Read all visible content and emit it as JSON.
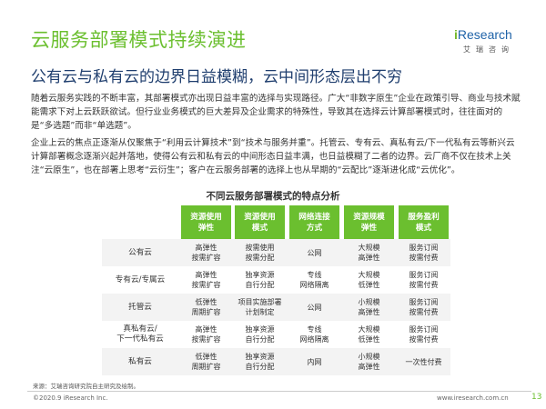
{
  "header": {
    "title": "云服务部署模式持续演进",
    "logo_text": "Research",
    "logo_i": "i",
    "logo_sub": "艾瑞咨询"
  },
  "subtitle": "公有云与私有云的边界日益模糊，云中间形态层出不穷",
  "paragraphs": [
    "随着云服务实践的不断丰富，其部署模式亦出现日益丰富的选择与实现路径。广大“非数字原生”企业在政策引导、商业与技术赋能需求下对上云跃跃欲试。但行业业务模式的巨大差异及企业需求的特殊性，导致其在选择云计算部署模式时，往往面对的是“多选题”而非“单选题”。",
    "企业上云的焦点正逐渐从仅聚焦于“利用云计算技术”到“技术与服务并重”。托管云、专有云、真私有云/下一代私有云等新兴云计算部署概念逐渐兴起并落地，使得公有云和私有云的中间形态日益丰满，也日益模糊了二者的边界。云厂商不仅在技术上关注“云原生”，也在部署上思考“云衍生”；客户在云服务部署的选择上也从早期的“云配比”逐渐进化成“云优化”。"
  ],
  "table": {
    "title": "不同云服务部署模式的特点分析",
    "headers": [
      "资源使用\n弹性",
      "资源使用\n模式",
      "网络连接\n方式",
      "资源规模\n弹性",
      "服务盈利\n模式"
    ],
    "rows": [
      {
        "label": "公有云",
        "cells": [
          "高弹性\n按需扩容",
          "按需使用\n按需分配",
          "公网",
          "大规模\n高弹性",
          "服务订阅\n按需付费"
        ]
      },
      {
        "label": "专有云/专属云",
        "cells": [
          "高弹性\n按需扩容",
          "独享资源\n自行分配",
          "专线\n网络隔离",
          "大规模\n低弹性",
          "服务订阅\n按需付费"
        ]
      },
      {
        "label": "托管云",
        "cells": [
          "低弹性\n周期扩容",
          "项目实施部署\n计划制定",
          "公网",
          "小规模\n高弹性",
          "服务订阅\n按需付费"
        ]
      },
      {
        "label": "真私有云/\n下一代私有云",
        "cells": [
          "高弹性\n按需扩容",
          "独享资源\n自行分配",
          "专线\n网络隔离",
          "大规模\n低弹性",
          "服务订阅\n按需付费"
        ]
      },
      {
        "label": "私有云",
        "cells": [
          "低弹性\n周期扩容",
          "独享资源\n自行分配",
          "内网",
          "小规模\n高弹性",
          "一次性付费"
        ]
      }
    ]
  },
  "footer": {
    "source": "来源：艾瑞咨询研究院自主研究及绘制。",
    "copyright": "©2020.9 iResearch Inc.",
    "url": "www.iresearch.com.cn",
    "page": "13"
  },
  "colors": {
    "accent_green": "#6bbf2f",
    "title_navy": "#1f3e6e",
    "logo_blue": "#1f63a8"
  }
}
